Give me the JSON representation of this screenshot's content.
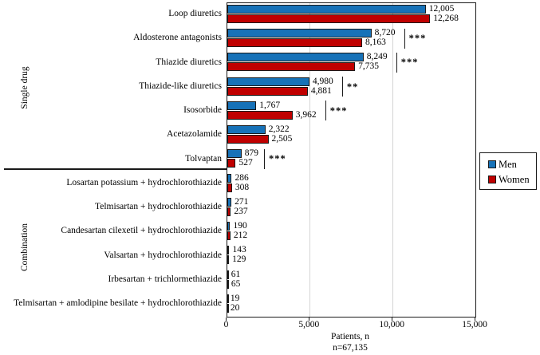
{
  "chart_data": {
    "type": "bar",
    "orientation": "horizontal",
    "title": "",
    "xlabel": "Patients, n",
    "sample_size_label": "n=67,135",
    "xlim": [
      0,
      15000
    ],
    "xticks": [
      0,
      5000,
      10000,
      15000
    ],
    "xtick_labels": [
      "0",
      "5,000",
      "10,000",
      "15,000"
    ],
    "gridlines": [
      5000,
      10000
    ],
    "grid": true,
    "legend_position": "right",
    "groups": [
      {
        "label": "Single drug",
        "row_count": 7
      },
      {
        "label": "Combination",
        "row_count": 6
      }
    ],
    "categories": [
      "Loop diuretics",
      "Aldosterone antagonists",
      "Thiazide diuretics",
      "Thiazide-like diuretics",
      "Isosorbide",
      "Acetazolamide",
      "Tolvaptan",
      "Losartan potassium + hydrochlorothiazide",
      "Telmisartan + hydrochlorothiazide",
      "Candesartan cilexetil + hydrochlorothiazide",
      "Valsartan + hydrochlorothiazide",
      "Irbesartan + trichlormethiazide",
      "Telmisartan + amlodipine besilate + hydrochlorothiazide"
    ],
    "series": [
      {
        "name": "Men",
        "color": "#1772B8",
        "values": [
          12005,
          8720,
          8249,
          4980,
          1767,
          2322,
          879,
          286,
          271,
          190,
          143,
          61,
          19
        ],
        "labels": [
          "12,005",
          "8,720",
          "8,249",
          "4,980",
          "1,767",
          "2,322",
          "879",
          "286",
          "271",
          "190",
          "143",
          "61",
          "19"
        ]
      },
      {
        "name": "Women",
        "color": "#C00000",
        "values": [
          12268,
          8163,
          7735,
          4881,
          3962,
          2505,
          527,
          308,
          237,
          212,
          129,
          65,
          20
        ],
        "labels": [
          "12,268",
          "8,163",
          "7,735",
          "4,881",
          "3,962",
          "2,505",
          "527",
          "308",
          "237",
          "212",
          "129",
          "65",
          "20"
        ]
      }
    ],
    "significance": [
      "",
      "***",
      "***",
      "**",
      "***",
      "",
      "***",
      "",
      "",
      "",
      "",
      "",
      ""
    ],
    "legend": {
      "entries": [
        {
          "label": "Men",
          "color": "#1772B8"
        },
        {
          "label": "Women",
          "color": "#C00000"
        }
      ]
    }
  },
  "colors": {
    "men": "#1772B8",
    "women": "#C00000",
    "gridline": "#d4d4d4",
    "axis": "#1a1a1a"
  }
}
